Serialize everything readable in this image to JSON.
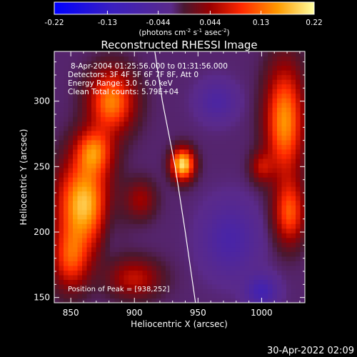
{
  "chart_data": {
    "type": "heatmap",
    "title": "Reconstructed RHESSI Image",
    "xlabel": "Heliocentric X (arcsec)",
    "ylabel": "Heliocentric Y (arcsec)",
    "x_ticks": [
      "850",
      "900",
      "950",
      "1000"
    ],
    "x_tick_values": [
      850,
      900,
      950,
      1000
    ],
    "y_ticks": [
      "150",
      "200",
      "250",
      "300"
    ],
    "y_tick_values": [
      150,
      200,
      250,
      300
    ],
    "xlim": [
      837,
      1034
    ],
    "ylim": [
      146,
      338
    ],
    "colorbar": {
      "ticks": [
        "-0.22",
        "-0.13",
        "-0.044",
        "0.044",
        "0.13",
        "0.22"
      ],
      "tick_values": [
        -0.22,
        -0.13,
        -0.044,
        0.044,
        0.13,
        0.22
      ],
      "range": [
        -0.22,
        0.22
      ],
      "unit_main": "(photons cm",
      "unit_sup1": "-2",
      "unit_mid": " s",
      "unit_sup2": "-1",
      "unit_end": " asec",
      "unit_sup3": "-2",
      "unit_close": ")"
    },
    "annotations": [
      "8-Apr-2004 01:25:56.000 to 01:31:56.000",
      "Detectors: 3F 4F 5F 6F 7F 8F, Att 0",
      "Energy Range: 3.0 - 6.0 keV",
      "Clean      Total counts: 5.79E+04"
    ],
    "peak_label": "Position of Peak = [938,252]",
    "peak": {
      "x": 938,
      "y": 252,
      "value": 0.22
    },
    "sources": [
      {
        "x": 860,
        "y": 222,
        "amp": 0.2,
        "sx": 14,
        "sy": 22
      },
      {
        "x": 868,
        "y": 262,
        "amp": 0.14,
        "sx": 10,
        "sy": 12
      },
      {
        "x": 882,
        "y": 300,
        "amp": 0.16,
        "sx": 12,
        "sy": 16
      },
      {
        "x": 850,
        "y": 180,
        "amp": 0.12,
        "sx": 10,
        "sy": 16
      },
      {
        "x": 938,
        "y": 252,
        "amp": 0.22,
        "sx": 6,
        "sy": 8
      },
      {
        "x": 1018,
        "y": 285,
        "amp": 0.17,
        "sx": 10,
        "sy": 28
      },
      {
        "x": 1022,
        "y": 215,
        "amp": 0.13,
        "sx": 8,
        "sy": 16
      },
      {
        "x": 1000,
        "y": 250,
        "amp": 0.07,
        "sx": 6,
        "sy": 8
      },
      {
        "x": 900,
        "y": 165,
        "amp": 0.08,
        "sx": 14,
        "sy": 10
      },
      {
        "x": 905,
        "y": 225,
        "amp": 0.06,
        "sx": 8,
        "sy": 10
      },
      {
        "x": 975,
        "y": 195,
        "amp": -0.06,
        "sx": 14,
        "sy": 18
      },
      {
        "x": 965,
        "y": 300,
        "amp": -0.05,
        "sx": 10,
        "sy": 10
      },
      {
        "x": 1000,
        "y": 155,
        "amp": -0.08,
        "sx": 8,
        "sy": 8
      },
      {
        "x": 880,
        "y": 210,
        "amp": -0.03,
        "sx": 6,
        "sy": 18
      }
    ],
    "limb_x_at_y": [
      {
        "y": 338,
        "x": 916
      },
      {
        "y": 300,
        "x": 922
      },
      {
        "y": 250,
        "x": 932
      },
      {
        "y": 200,
        "x": 940
      },
      {
        "y": 146,
        "x": 948
      }
    ]
  },
  "footer": {
    "timestamp": "30-Apr-2022 02:09"
  },
  "colors": {
    "background": "#000000",
    "text": "#ffffff",
    "limb": "#ffffff"
  }
}
